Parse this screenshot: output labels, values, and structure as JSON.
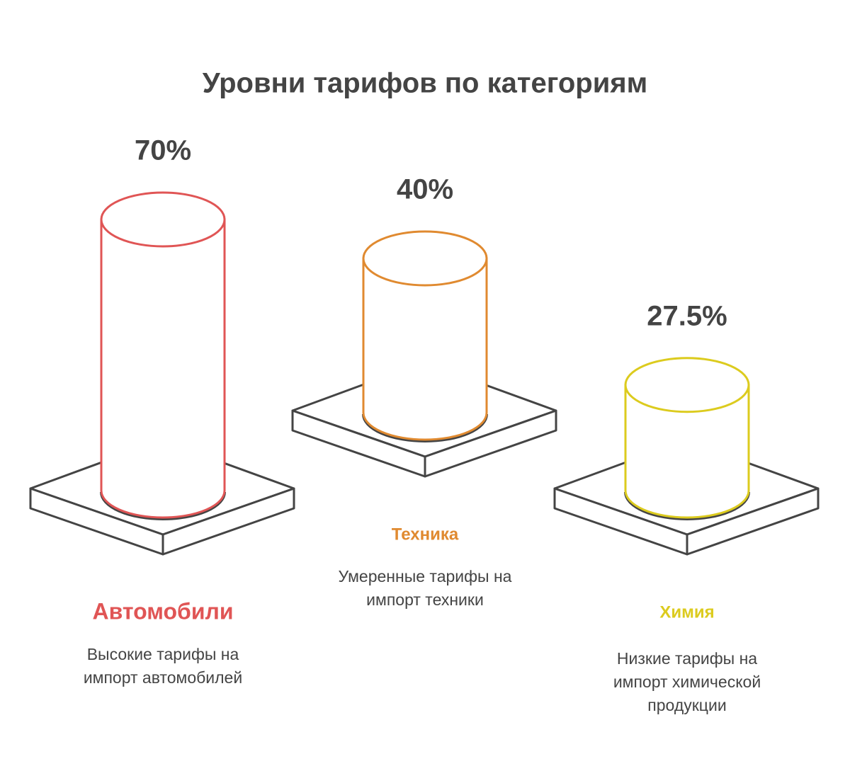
{
  "chart_data": {
    "type": "bar",
    "title": "Уровни тарифов по категориям",
    "categories": [
      "Автомобили",
      "Техника",
      "Химия"
    ],
    "values": [
      70,
      40,
      27.5
    ],
    "value_labels": [
      "70%",
      "40%",
      "27.5%"
    ],
    "colors": [
      "#e05555",
      "#e08a30",
      "#dccb1e"
    ],
    "descriptions": [
      [
        "Высокие тарифы на",
        "импорт автомобилей"
      ],
      [
        "Умеренные тарифы на",
        "импорт техники"
      ],
      [
        "Низкие тарифы на",
        "импорт химической",
        "продукции"
      ]
    ]
  }
}
